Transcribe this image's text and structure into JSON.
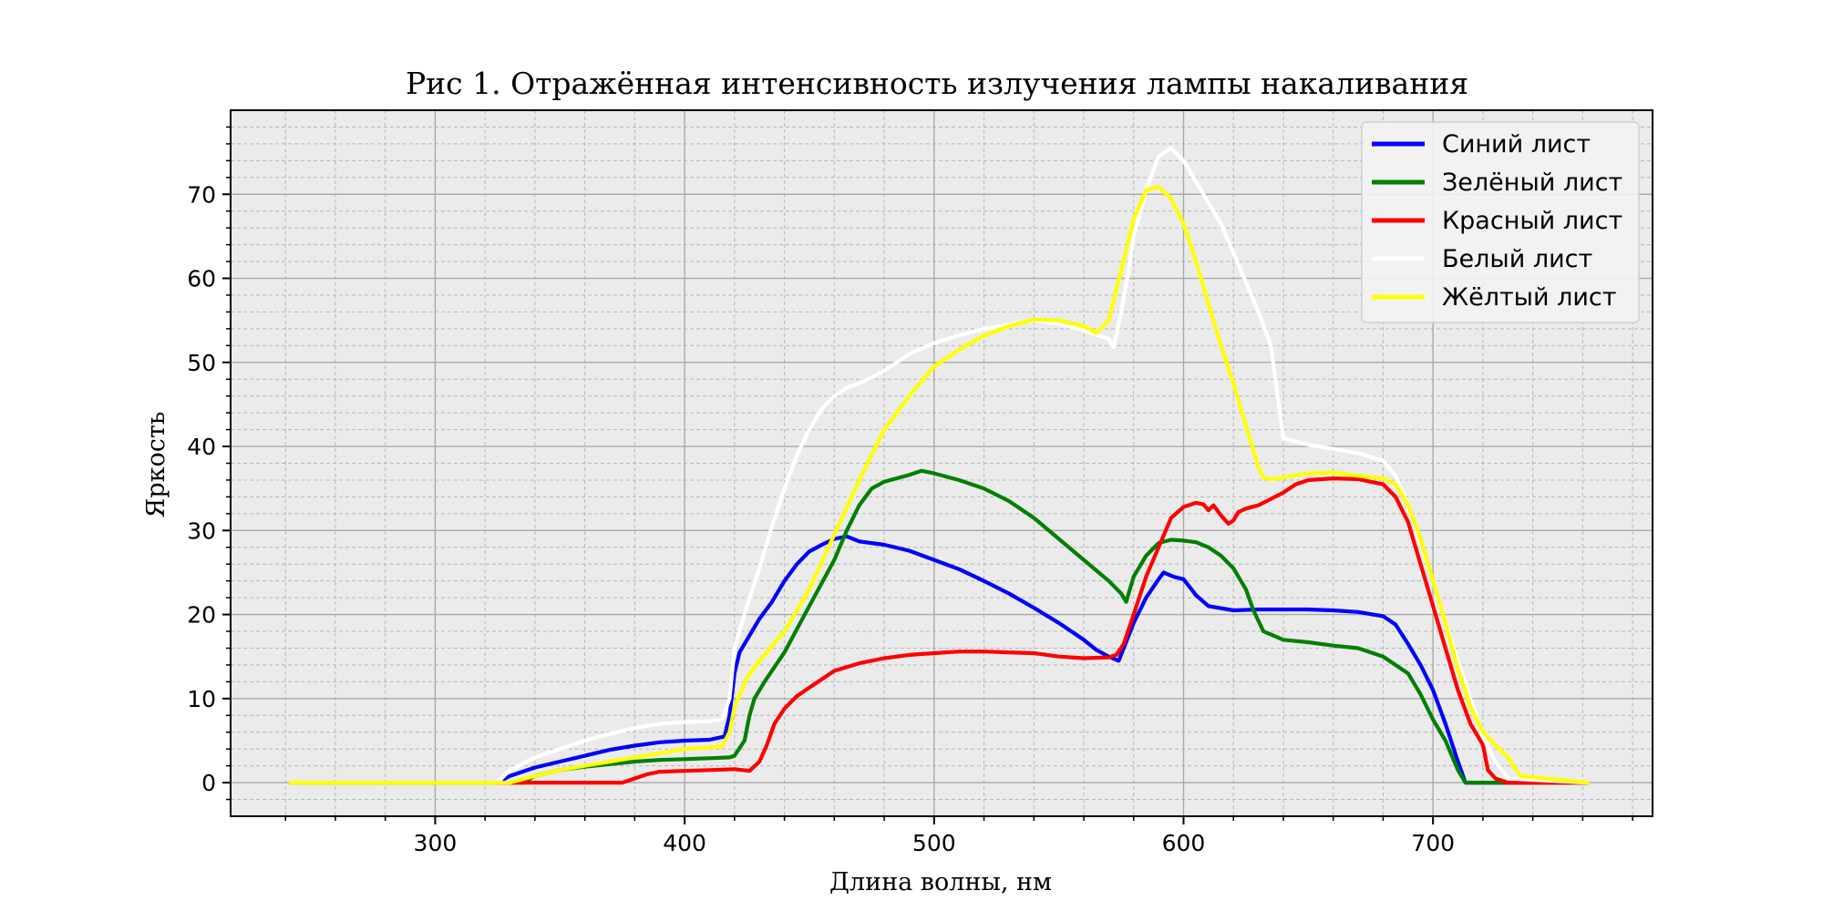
{
  "chart_data": {
    "type": "line",
    "title": "Рис 1. Отражённая интенсивность излучения лампы накаливания",
    "xlabel": "Длина волны, нм",
    "ylabel": "Яркость",
    "xlim": [
      218,
      788
    ],
    "ylim": [
      -4,
      80
    ],
    "xticks": [
      300,
      400,
      500,
      600,
      700
    ],
    "yticks": [
      0,
      10,
      20,
      30,
      40,
      50,
      60,
      70
    ],
    "grid": true,
    "background": "#ebebeb",
    "legend_position": "top-right",
    "series": [
      {
        "name": "Синий лист",
        "color": "#0000ff",
        "x": [
          242,
          325,
          330,
          340,
          350,
          360,
          370,
          380,
          390,
          400,
          410,
          416,
          418,
          420,
          422,
          426,
          430,
          435,
          440,
          445,
          450,
          455,
          460,
          465,
          470,
          480,
          490,
          500,
          510,
          520,
          530,
          540,
          550,
          560,
          565,
          570,
          574,
          580,
          585,
          590,
          592,
          596,
          600,
          605,
          610,
          620,
          630,
          640,
          650,
          660,
          670,
          680,
          685,
          690,
          695,
          700,
          705,
          710,
          713,
          730,
          762
        ],
        "y": [
          0,
          0,
          0.8,
          1.8,
          2.5,
          3.2,
          3.9,
          4.4,
          4.8,
          5.0,
          5.1,
          5.5,
          8,
          13,
          15.5,
          17.5,
          19.5,
          21.5,
          24,
          26,
          27.5,
          28.3,
          29,
          29.3,
          28.7,
          28.3,
          27.6,
          26.5,
          25.4,
          24,
          22.5,
          20.8,
          19,
          17,
          15.8,
          15.0,
          14.5,
          19,
          22,
          24.2,
          25,
          24.5,
          24.2,
          22.3,
          21,
          20.5,
          20.6,
          20.6,
          20.6,
          20.5,
          20.3,
          19.8,
          18.8,
          16.5,
          14,
          11,
          7,
          2.5,
          0,
          0,
          0
        ]
      },
      {
        "name": "Зелёный лист",
        "color": "#008000",
        "x": [
          242,
          335,
          340,
          350,
          360,
          370,
          380,
          390,
          400,
          410,
          418,
          420,
          424,
          426,
          428,
          432,
          440,
          450,
          460,
          465,
          470,
          475,
          480,
          490,
          495,
          500,
          510,
          520,
          530,
          540,
          550,
          560,
          570,
          575,
          577,
          580,
          585,
          590,
          595,
          600,
          605,
          610,
          615,
          620,
          625,
          628,
          632,
          640,
          650,
          660,
          670,
          680,
          690,
          695,
          700,
          705,
          710,
          713,
          730,
          762
        ],
        "y": [
          0,
          0,
          0.8,
          1.5,
          1.9,
          2.2,
          2.5,
          2.7,
          2.8,
          2.9,
          3.0,
          3.2,
          5,
          8,
          10,
          12,
          15.5,
          21,
          26.5,
          30,
          33,
          35,
          35.8,
          36.6,
          37.1,
          36.8,
          36,
          35,
          33.5,
          31.5,
          29,
          26.5,
          24,
          22.5,
          21.5,
          24.5,
          27,
          28.5,
          28.9,
          28.8,
          28.6,
          28,
          27,
          25.5,
          23,
          20.5,
          18,
          17,
          16.7,
          16.3,
          16,
          15,
          13,
          10.5,
          7.5,
          5,
          1.5,
          0,
          0,
          0
        ]
      },
      {
        "name": "Красный лист",
        "color": "#ff0000",
        "x": [
          242,
          375,
          380,
          385,
          390,
          400,
          410,
          420,
          426,
          430,
          433,
          436,
          440,
          445,
          450,
          455,
          460,
          470,
          480,
          490,
          500,
          510,
          520,
          530,
          540,
          550,
          560,
          570,
          573,
          576,
          580,
          585,
          590,
          595,
          600,
          605,
          608,
          610,
          612,
          615,
          618,
          620,
          622,
          625,
          630,
          640,
          645,
          650,
          660,
          670,
          675,
          680,
          685,
          690,
          695,
          700,
          705,
          710,
          715,
          720,
          722,
          725,
          730,
          762
        ],
        "y": [
          0,
          0,
          0.5,
          1.0,
          1.3,
          1.4,
          1.5,
          1.6,
          1.4,
          2.5,
          4.5,
          7,
          8.8,
          10.3,
          11.3,
          12.3,
          13.3,
          14.2,
          14.8,
          15.2,
          15.4,
          15.6,
          15.6,
          15.5,
          15.4,
          15.0,
          14.8,
          14.9,
          15.2,
          16.5,
          20,
          24.5,
          28,
          31.5,
          32.8,
          33.3,
          33.1,
          32.4,
          33,
          31.8,
          30.8,
          31.2,
          32.2,
          32.6,
          33,
          34.5,
          35.5,
          36,
          36.2,
          36.1,
          35.8,
          35.5,
          34,
          31,
          26,
          21,
          16,
          11,
          7,
          4.5,
          1.5,
          0.5,
          0,
          0
        ]
      },
      {
        "name": "Белый лист",
        "color": "#ffffff",
        "x": [
          242,
          325,
          330,
          340,
          350,
          360,
          370,
          380,
          390,
          400,
          410,
          415,
          418,
          420,
          425,
          430,
          435,
          440,
          445,
          450,
          455,
          460,
          465,
          470,
          480,
          490,
          500,
          510,
          520,
          530,
          540,
          550,
          560,
          565,
          570,
          572,
          575,
          578,
          580,
          585,
          590,
          595,
          600,
          605,
          610,
          615,
          620,
          625,
          630,
          635,
          640,
          650,
          660,
          670,
          680,
          685,
          690,
          695,
          700,
          705,
          710,
          715,
          720,
          725,
          730,
          762
        ],
        "y": [
          0,
          0,
          1.5,
          3,
          4,
          5,
          5.8,
          6.5,
          7,
          7.2,
          7.3,
          7.5,
          10,
          16,
          21,
          25.5,
          30.5,
          35,
          39,
          42,
          44.5,
          46,
          47,
          47.5,
          49,
          51,
          52.3,
          53.2,
          54,
          54.5,
          55,
          54.6,
          53.8,
          53.3,
          52.8,
          51.8,
          56,
          61,
          65,
          70.5,
          74.5,
          75.5,
          74,
          71.5,
          69,
          66.5,
          63,
          59.5,
          56,
          52,
          41,
          40.2,
          39.7,
          39.2,
          38.3,
          36.5,
          33,
          28.5,
          24,
          19,
          14.5,
          10,
          5.5,
          2.5,
          0.5,
          0
        ]
      },
      {
        "name": "Жёлтый лист",
        "color": "#ffff00",
        "x": [
          242,
          330,
          340,
          350,
          360,
          370,
          380,
          390,
          400,
          410,
          415,
          418,
          420,
          425,
          430,
          440,
          450,
          460,
          470,
          480,
          490,
          500,
          510,
          520,
          530,
          540,
          550,
          560,
          565,
          570,
          575,
          580,
          585,
          590,
          595,
          600,
          605,
          610,
          615,
          620,
          625,
          630,
          632,
          635,
          640,
          650,
          660,
          670,
          680,
          685,
          690,
          695,
          700,
          705,
          710,
          715,
          720,
          725,
          730,
          735,
          762
        ],
        "y": [
          0,
          0,
          0.8,
          1.5,
          2.0,
          2.5,
          3.0,
          3.5,
          4.0,
          4.2,
          4.3,
          6,
          9,
          12.5,
          14.5,
          18,
          23,
          29.5,
          36,
          42,
          46,
          49.5,
          51.5,
          53.2,
          54.3,
          55.1,
          55,
          54.3,
          53.5,
          55,
          61,
          67,
          70.5,
          70.9,
          69.5,
          66.5,
          62,
          57,
          52,
          47.5,
          42.5,
          37.5,
          36.3,
          36.1,
          36.3,
          36.8,
          36.9,
          36.5,
          36.2,
          35.5,
          33,
          29,
          24,
          19,
          13.5,
          9,
          6,
          4.5,
          3,
          0.8,
          0
        ]
      }
    ]
  }
}
